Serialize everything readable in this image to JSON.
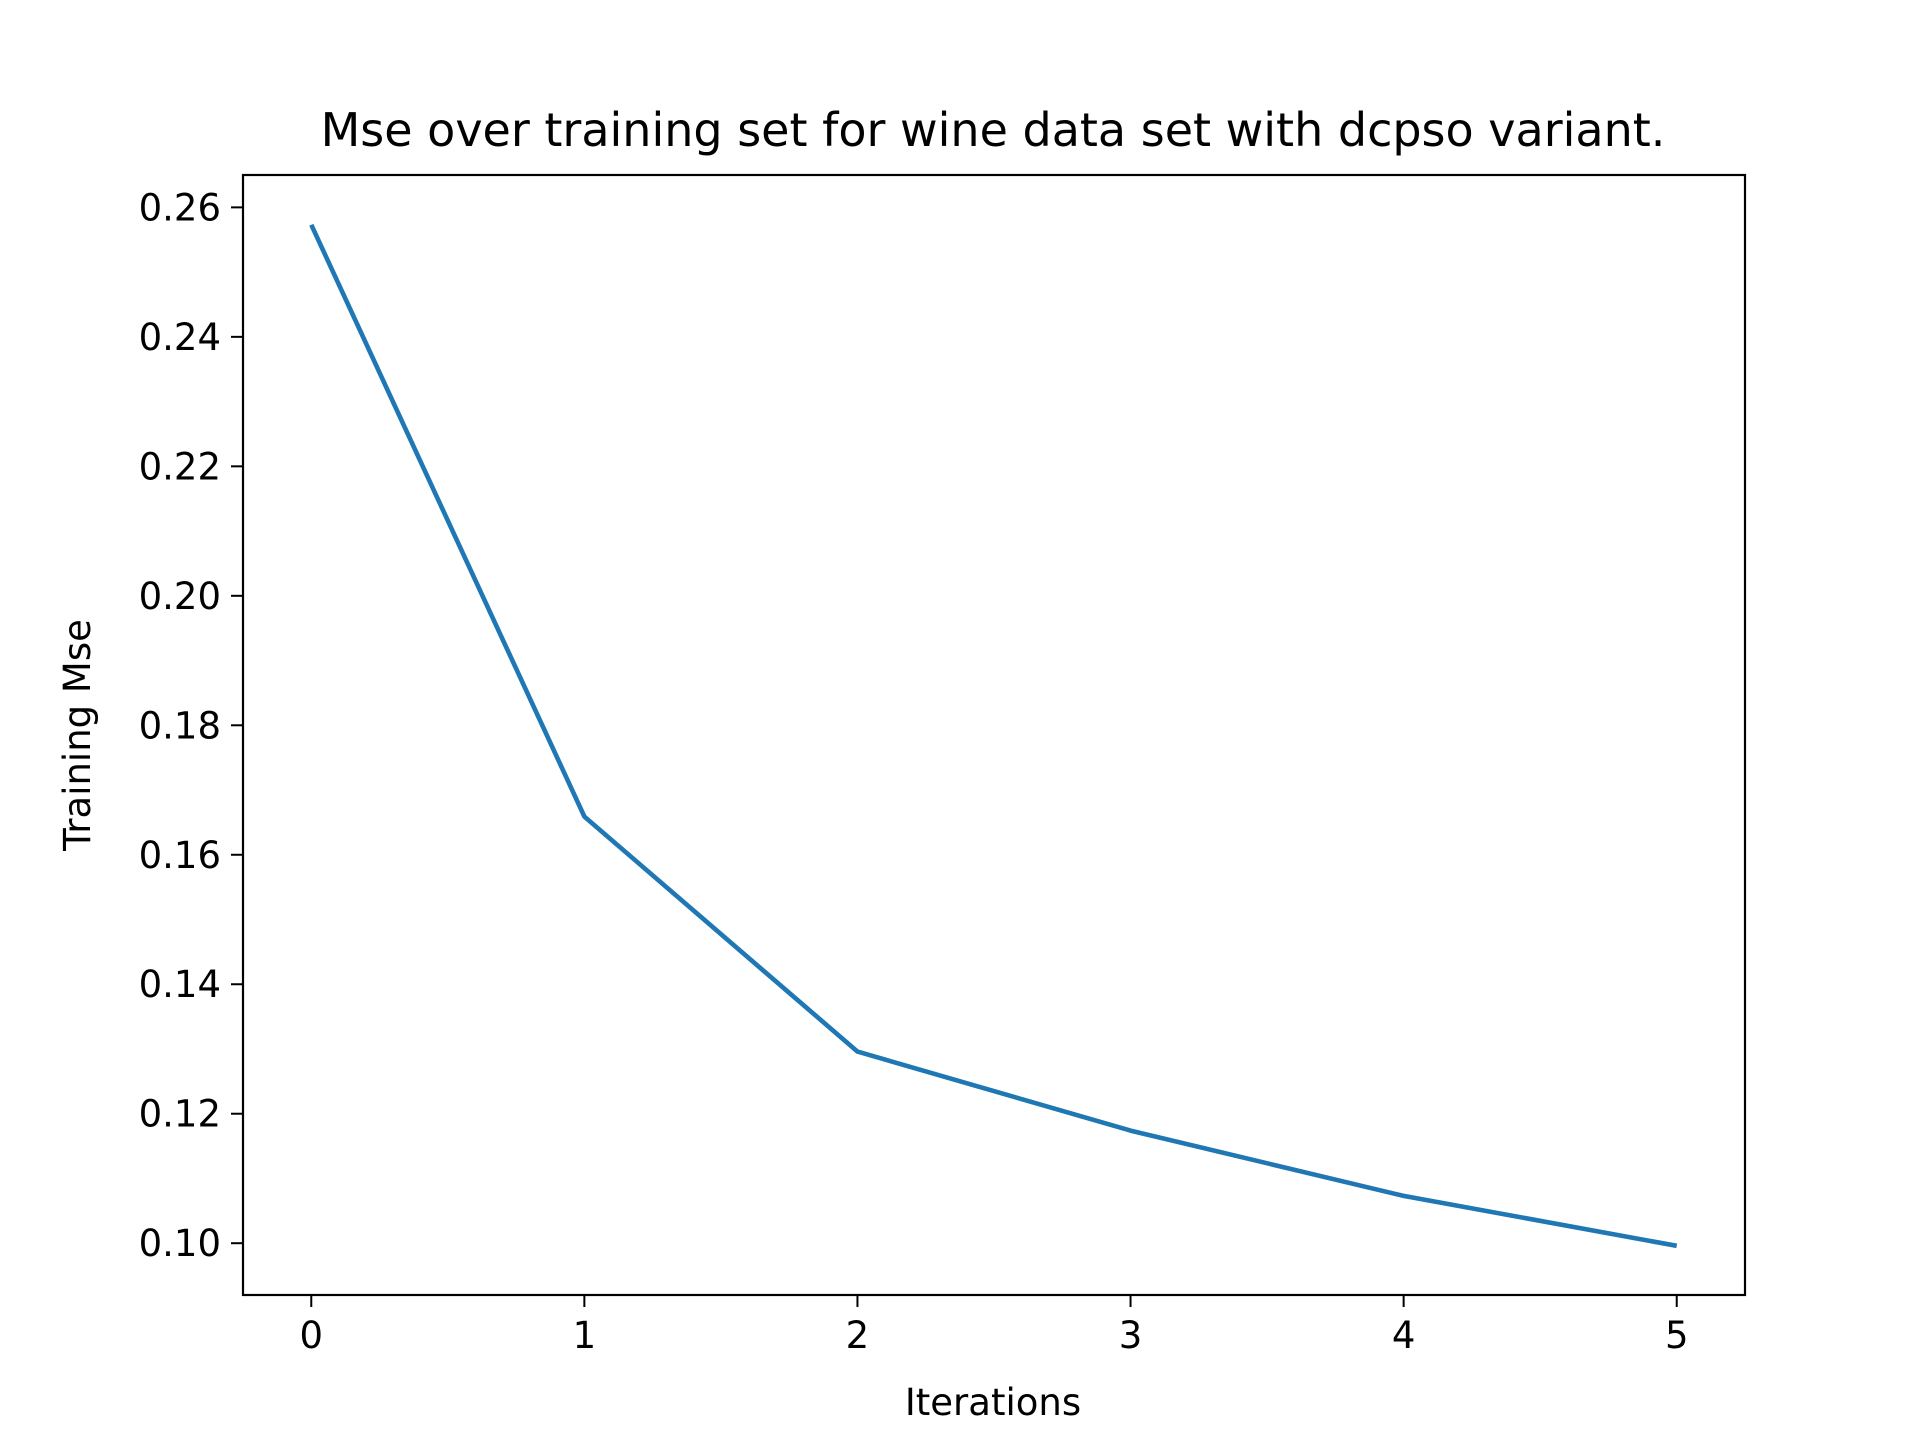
{
  "chart_data": {
    "type": "line",
    "title": "Mse over training set for wine data set with dcpso variant.",
    "xlabel": "Iterations",
    "ylabel": "Training Mse",
    "x": [
      0,
      1,
      2,
      3,
      4,
      5
    ],
    "series": [
      {
        "values": [
          0.2573,
          0.1659,
          0.1296,
          0.1174,
          0.1073,
          0.0996
        ],
        "color": "#1f77b4"
      }
    ],
    "xlim": [
      -0.25,
      5.25
    ],
    "ylim": [
      0.092,
      0.265
    ],
    "xticks": [
      0,
      1,
      2,
      3,
      4,
      5
    ],
    "xtick_labels": [
      "0",
      "1",
      "2",
      "3",
      "4",
      "5"
    ],
    "yticks": [
      0.1,
      0.12,
      0.14,
      0.16,
      0.18,
      0.2,
      0.22,
      0.24,
      0.26
    ],
    "ytick_labels": [
      "0.10",
      "0.12",
      "0.14",
      "0.16",
      "0.18",
      "0.20",
      "0.22",
      "0.24",
      "0.26"
    ],
    "grid": false,
    "legend": false
  }
}
